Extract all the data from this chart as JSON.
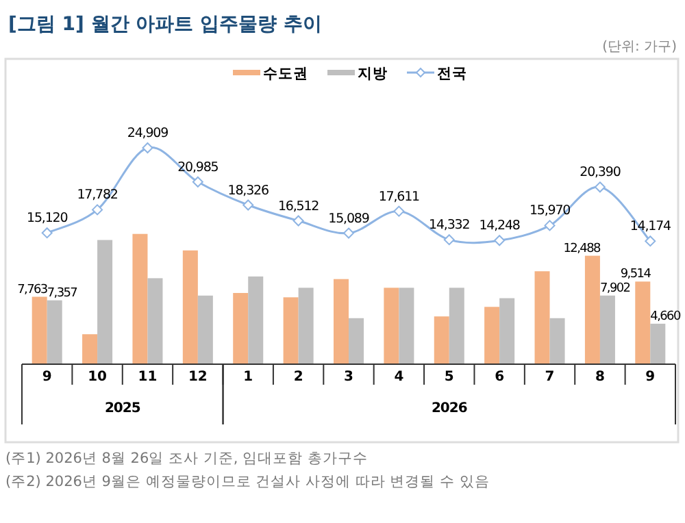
{
  "chart_data": {
    "type": "bar",
    "title": "[그림 1] 월간 아파트 입주물량 추이",
    "subtitle": "(단위: 가구)",
    "categories": [
      "9",
      "10",
      "11",
      "12",
      "1",
      "2",
      "3",
      "4",
      "5",
      "6",
      "7",
      "8",
      "9"
    ],
    "series": [
      {
        "name": "수도권",
        "type": "bar",
        "color": "#f4b183",
        "values": [
          7763,
          3450,
          15000,
          13100,
          8200,
          7700,
          9800,
          8800,
          5500,
          6600,
          10700,
          12488,
          9514
        ],
        "value_labels": [
          "7,763",
          null,
          null,
          null,
          null,
          null,
          null,
          null,
          null,
          null,
          null,
          "12,488",
          "9,514"
        ]
      },
      {
        "name": "지방",
        "type": "bar",
        "color": "#bfbfbf",
        "values": [
          7357,
          14300,
          9900,
          7900,
          10100,
          8800,
          5300,
          8800,
          8800,
          7600,
          5300,
          7902,
          4660
        ],
        "value_labels": [
          "7,357",
          null,
          null,
          null,
          null,
          null,
          null,
          null,
          null,
          null,
          null,
          "7,902",
          "4,660"
        ]
      },
      {
        "name": "전국",
        "type": "line",
        "color": "#8eb4e3",
        "marker": "diamond",
        "values": [
          15120,
          17782,
          24909,
          20985,
          18326,
          16512,
          15089,
          17611,
          14332,
          14248,
          15970,
          20390,
          14174
        ],
        "value_labels": [
          "15,120",
          "17,782",
          "24,909",
          "20,985",
          "18,326",
          "16,512",
          "15,089",
          "17,611",
          "14,332",
          "14,248",
          "15,970",
          "20,390",
          "14,174"
        ]
      }
    ],
    "legend": "top",
    "annotations": [
      "2025",
      "2026",
      "(주1) 2026년 8월 26일 조사 기준, 임대포함 총가구수",
      "(주2) 2026년 9월은 예정물량이므로 건설사 사정에 따라 변경될 수 있음"
    ]
  }
}
